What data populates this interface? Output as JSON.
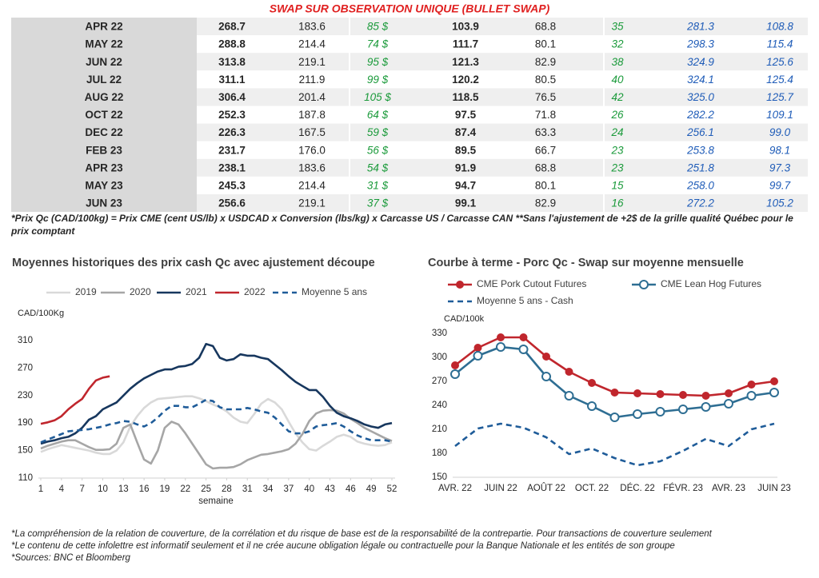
{
  "table": {
    "title": "SWAP SUR OBSERVATION UNIQUE (BULLET SWAP)",
    "rows": [
      [
        "APR 22",
        "268.7",
        "183.6",
        "85 $",
        "103.9",
        "68.8",
        "35",
        "281.3",
        "108.8"
      ],
      [
        "MAY 22",
        "288.8",
        "214.4",
        "74 $",
        "111.7",
        "80.1",
        "32",
        "298.3",
        "115.4"
      ],
      [
        "JUN 22",
        "313.8",
        "219.1",
        "95 $",
        "121.3",
        "82.9",
        "38",
        "324.9",
        "125.6"
      ],
      [
        "JUL 22",
        "311.1",
        "211.9",
        "99 $",
        "120.2",
        "80.5",
        "40",
        "324.1",
        "125.4"
      ],
      [
        "AUG 22",
        "306.4",
        "201.4",
        "105 $",
        "118.5",
        "76.5",
        "42",
        "325.0",
        "125.7"
      ],
      [
        "OCT 22",
        "252.3",
        "187.8",
        "64 $",
        "97.5",
        "71.8",
        "26",
        "282.2",
        "109.1"
      ],
      [
        "DEC 22",
        "226.3",
        "167.5",
        "59 $",
        "87.4",
        "63.3",
        "24",
        "256.1",
        "99.0"
      ],
      [
        "FEB 23",
        "231.7",
        "176.0",
        "56 $",
        "89.5",
        "66.7",
        "23",
        "253.8",
        "98.1"
      ],
      [
        "APR 23",
        "238.1",
        "183.6",
        "54 $",
        "91.9",
        "68.8",
        "23",
        "251.8",
        "97.3"
      ],
      [
        "MAY 23",
        "245.3",
        "214.4",
        "31 $",
        "94.7",
        "80.1",
        "15",
        "258.0",
        "99.7"
      ],
      [
        "JUN 23",
        "256.6",
        "219.1",
        "37 $",
        "99.1",
        "82.9",
        "16",
        "272.2",
        "105.2"
      ]
    ],
    "note": "*Prix Qc (CAD/100kg) = Prix CME (cent US/lb) x USDCAD x Conversion (lbs/kg) x Carcasse US / Carcasse CAN **Sans l'ajustement de +2$ de la grille qualité Québec pour le prix comptant"
  },
  "chart_data": [
    {
      "type": "line",
      "title": "Moyennes historiques des prix cash Qc avec ajustement découpe",
      "y_label": "CAD/100Kg",
      "x_label": "semaine",
      "x": [
        1,
        2,
        3,
        4,
        5,
        6,
        7,
        8,
        9,
        10,
        11,
        12,
        13,
        14,
        15,
        16,
        17,
        18,
        19,
        20,
        21,
        22,
        23,
        24,
        25,
        26,
        27,
        28,
        29,
        30,
        31,
        32,
        33,
        34,
        35,
        36,
        37,
        38,
        39,
        40,
        41,
        42,
        43,
        44,
        45,
        46,
        47,
        48,
        49,
        50,
        51,
        52
      ],
      "xlim": [
        1,
        52
      ],
      "xticks": [
        1,
        4,
        7,
        10,
        13,
        16,
        19,
        22,
        25,
        28,
        31,
        34,
        37,
        40,
        43,
        46,
        49,
        52
      ],
      "ylim": [
        110,
        310
      ],
      "yticks": [
        110,
        150,
        190,
        230,
        270,
        310
      ],
      "series": [
        {
          "name": "2019",
          "color": "#d9d9d9",
          "style": "solid",
          "values": [
            148,
            152,
            155,
            158,
            156,
            154,
            152,
            150,
            147,
            145,
            145,
            150,
            162,
            185,
            200,
            212,
            220,
            225,
            226,
            227,
            228,
            229,
            229,
            226,
            222,
            217,
            213,
            207,
            198,
            192,
            190,
            203,
            218,
            225,
            220,
            210,
            192,
            175,
            162,
            152,
            150,
            157,
            163,
            170,
            173,
            170,
            163,
            160,
            158,
            157,
            158,
            162
          ]
        },
        {
          "name": "2020",
          "color": "#a6a6a6",
          "style": "solid",
          "values": [
            153,
            157,
            160,
            163,
            165,
            165,
            160,
            155,
            151,
            151,
            152,
            160,
            183,
            188,
            162,
            137,
            131,
            150,
            183,
            192,
            188,
            175,
            160,
            145,
            130,
            124,
            125,
            125,
            126,
            130,
            136,
            140,
            144,
            145,
            147,
            149,
            152,
            160,
            174,
            193,
            204,
            208,
            209,
            208,
            204,
            196,
            190,
            183,
            178,
            173,
            168,
            164
          ]
        },
        {
          "name": "2021",
          "color": "#17375e",
          "style": "solid",
          "values": [
            160,
            163,
            165,
            168,
            170,
            175,
            183,
            195,
            200,
            210,
            215,
            220,
            230,
            240,
            248,
            255,
            260,
            265,
            268,
            268,
            272,
            273,
            276,
            285,
            305,
            302,
            285,
            281,
            283,
            290,
            288,
            288,
            285,
            283,
            275,
            267,
            258,
            250,
            244,
            238,
            238,
            228,
            215,
            205,
            200,
            197,
            193,
            188,
            185,
            183,
            188,
            190
          ]
        },
        {
          "name": "2022",
          "color": "#c0262d",
          "style": "solid",
          "values": [
            189,
            191,
            194,
            200,
            210,
            218,
            225,
            240,
            252,
            256,
            258,
            null,
            null,
            null,
            null,
            null,
            null,
            null,
            null,
            null,
            null,
            null,
            null,
            null,
            null,
            null,
            null,
            null,
            null,
            null,
            null,
            null,
            null,
            null,
            null,
            null,
            null,
            null,
            null,
            null,
            null,
            null,
            null,
            null,
            null,
            null,
            null,
            null,
            null,
            null,
            null,
            null
          ]
        },
        {
          "name": "Moyenne 5 ans",
          "color": "#1f5c99",
          "style": "dashed",
          "values": [
            162,
            166,
            170,
            174,
            178,
            179,
            180,
            181,
            183,
            185,
            188,
            190,
            193,
            192,
            188,
            185,
            190,
            198,
            208,
            215,
            215,
            213,
            213,
            218,
            224,
            222,
            213,
            210,
            210,
            210,
            212,
            210,
            207,
            205,
            198,
            188,
            178,
            175,
            175,
            178,
            185,
            187,
            188,
            190,
            185,
            178,
            172,
            168,
            165,
            165,
            165,
            163
          ]
        }
      ]
    },
    {
      "type": "line",
      "title": "Courbe à terme - Porc Qc - Swap sur moyenne mensuelle",
      "y_label": "CAD/100k",
      "categories": [
        "AVR. 22",
        null,
        "JUIN 22",
        null,
        "AOÛT 22",
        null,
        "OCT. 22",
        null,
        "DÉC. 22",
        null,
        "FÉVR. 23",
        null,
        "AVR. 23",
        null,
        "JUIN 23"
      ],
      "ylim": [
        150,
        330
      ],
      "yticks": [
        150,
        180,
        210,
        240,
        270,
        300,
        330
      ],
      "series": [
        {
          "name": "CME Pork Cutout Futures",
          "color": "#c0262d",
          "style": "solid",
          "marker": "filled",
          "values": [
            290,
            312,
            325,
            325,
            301,
            282,
            268,
            256,
            255,
            254,
            253,
            252,
            255,
            266,
            270
          ]
        },
        {
          "name": "CME Lean Hog Futures",
          "color": "#2e6e93",
          "style": "solid",
          "marker": "hollow",
          "values": [
            279,
            302,
            313,
            310,
            276,
            252,
            239,
            225,
            229,
            232,
            235,
            238,
            242,
            252,
            256
          ]
        },
        {
          "name": "Moyenne 5 ans - Cash",
          "color": "#1f5c99",
          "style": "dashed",
          "values": [
            189,
            211,
            217,
            212,
            200,
            179,
            186,
            174,
            165,
            170,
            183,
            198,
            189,
            210,
            217
          ]
        }
      ]
    }
  ],
  "footer": {
    "notes": [
      "*La compréhension de la relation de couverture, de la corrélation et du risque de base est de la responsabilité de la contrepartie. Pour transactions de couverture seulement",
      "*Le contenu de cette infolettre est informatif seulement et il ne crée aucune obligation légale ou contractuelle pour la Banque Nationale et les entités de son groupe",
      "*Sources: BNC et Bloomberg"
    ]
  }
}
